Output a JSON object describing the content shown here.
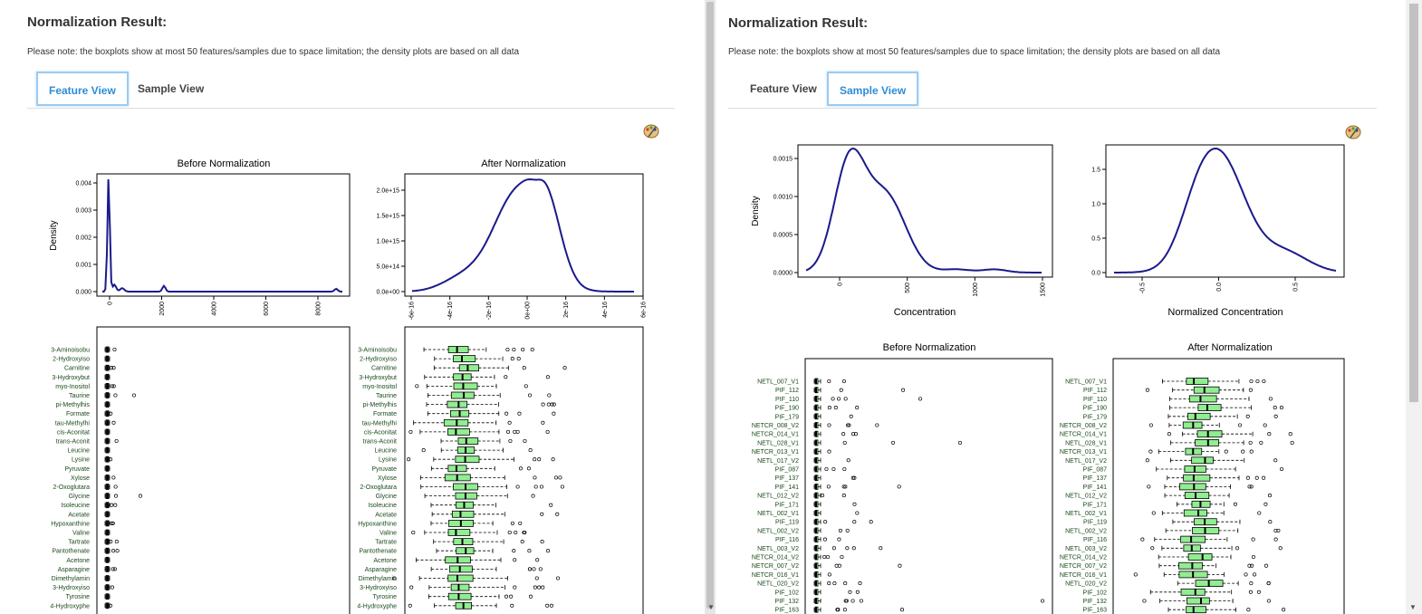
{
  "left": {
    "title": "Normalization Result:",
    "note": "Please note: the boxplots show at most 50 features/samples due to space limitation; the density plots are based on all data",
    "tabs": [
      {
        "label": "Feature View",
        "active": true
      },
      {
        "label": "Sample View",
        "active": false
      }
    ],
    "palette_icon": "palette-icon",
    "density_before": {
      "title": "Before Normalization",
      "ylabel": "Density",
      "xticks": [
        "0",
        "2000",
        "4000",
        "6000",
        "8000"
      ],
      "yticks": [
        "0.000",
        "0.001",
        "0.002",
        "0.003",
        "0.004"
      ]
    },
    "density_after": {
      "title": "After Normalization",
      "xticks": [
        "-6e-16",
        "-4e-16",
        "-2e-16",
        "0e+00",
        "2e-16",
        "4e-16",
        "6e-16"
      ],
      "yticks": [
        "0.0e+00",
        "5.0e+14",
        "1.0e+15",
        "1.5e+15",
        "2.0e+15"
      ]
    },
    "feature_labels": [
      "3-Aminoisobu",
      "2-Hydroxyiso",
      "Carnitine",
      "3-Hydroxybut",
      "myo-Inositol",
      "Taurine",
      "pi-Methylhis",
      "Formate",
      "tau-Methylhi",
      "cis-Aconitat",
      "trans-Aconit",
      "Leucine",
      "Lysine",
      "Pyruvate",
      "Xylose",
      "2-Oxoglutara",
      "Glycine",
      "Isoleucine",
      "Acetate",
      "Hypoxanthine",
      "Valine",
      "Tartrate",
      "Pantothenate",
      "Acetone",
      "Asparagine",
      "Dimethylamin",
      "3-Hydroxyiso",
      "Tyrosine",
      "4-Hydroxyphe"
    ]
  },
  "right": {
    "title": "Normalization Result:",
    "note": "Please note: the boxplots show at most 50 features/samples due to space limitation; the density plots are based on all data",
    "tabs": [
      {
        "label": "Feature View",
        "active": false
      },
      {
        "label": "Sample View",
        "active": true
      }
    ],
    "palette_icon": "palette-icon",
    "density_before": {
      "ylabel": "Density",
      "xlabel": "Concentration",
      "xticks": [
        "0",
        "500",
        "1000",
        "1500"
      ],
      "yticks": [
        "0.0000",
        "0.0005",
        "0.0010",
        "0.0015"
      ]
    },
    "density_after": {
      "xlabel": "Normalized Concentration",
      "xticks": [
        "-0.5",
        "0.0",
        "0.5"
      ],
      "yticks": [
        "0.0",
        "0.5",
        "1.0",
        "1.5"
      ]
    },
    "boxplot_before_title": "Before Normalization",
    "boxplot_after_title": "After Normalization",
    "sample_labels": [
      "NETL_007_V1",
      "PIF_112",
      "PIF_110",
      "PIF_190",
      "PIF_179",
      "NETCR_008_V2",
      "NETCR_014_V1",
      "NETL_028_V1",
      "NETCR_013_V1",
      "NETL_017_V2",
      "PIF_087",
      "PIF_137",
      "PIF_141",
      "NETL_012_V2",
      "PIF_171",
      "NETL_002_V1",
      "PIF_119",
      "NETL_002_V2",
      "PIF_116",
      "NETL_003_V2",
      "NETCR_014_V2",
      "NETCR_007_V2",
      "NETCR_016_V1",
      "NETL_020_V2",
      "PIF_102",
      "PIF_132",
      "PIF_163"
    ]
  },
  "colors": {
    "accent": "#2d8cd6",
    "curve": "#1a1a8c",
    "box_fill": "#90ee90"
  }
}
